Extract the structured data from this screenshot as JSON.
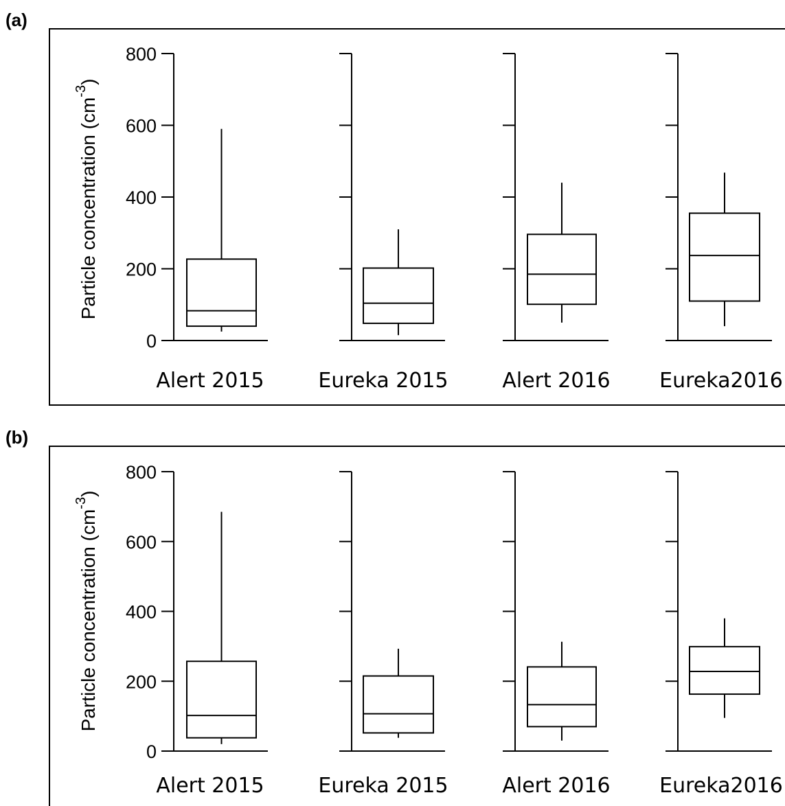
{
  "chart_data": [
    {
      "type": "box",
      "panel_label": "(a)",
      "ylabel": "Particle concentration (cm",
      "ylabel_sup": "-3",
      "ylabel_close": ")",
      "ylim": [
        0,
        800
      ],
      "yticks": [
        0,
        200,
        400,
        600,
        800
      ],
      "categories": [
        "Alert 2015",
        "Eureka 2015",
        "Alert 2016",
        "Eureka2016"
      ],
      "boxes": [
        {
          "whisker_low": 25,
          "q1": 40,
          "median": 83,
          "q3": 227,
          "whisker_high": 590
        },
        {
          "whisker_low": 15,
          "q1": 48,
          "median": 104,
          "q3": 202,
          "whisker_high": 310
        },
        {
          "whisker_low": 50,
          "q1": 101,
          "median": 185,
          "q3": 296,
          "whisker_high": 440
        },
        {
          "whisker_low": 40,
          "q1": 110,
          "median": 237,
          "q3": 355,
          "whisker_high": 468
        }
      ]
    },
    {
      "type": "box",
      "panel_label": "(b)",
      "ylabel": "Particle concentration (cm",
      "ylabel_sup": "-3",
      "ylabel_close": ")",
      "ylim": [
        0,
        800
      ],
      "yticks": [
        0,
        200,
        400,
        600,
        800
      ],
      "categories": [
        "Alert 2015",
        "Eureka 2015",
        "Alert 2016",
        "Eureka2016"
      ],
      "boxes": [
        {
          "whisker_low": 20,
          "q1": 38,
          "median": 102,
          "q3": 257,
          "whisker_high": 685
        },
        {
          "whisker_low": 38,
          "q1": 52,
          "median": 107,
          "q3": 215,
          "whisker_high": 293
        },
        {
          "whisker_low": 30,
          "q1": 70,
          "median": 133,
          "q3": 241,
          "whisker_high": 313
        },
        {
          "whisker_low": 95,
          "q1": 163,
          "median": 228,
          "q3": 299,
          "whisker_high": 380
        }
      ]
    }
  ]
}
